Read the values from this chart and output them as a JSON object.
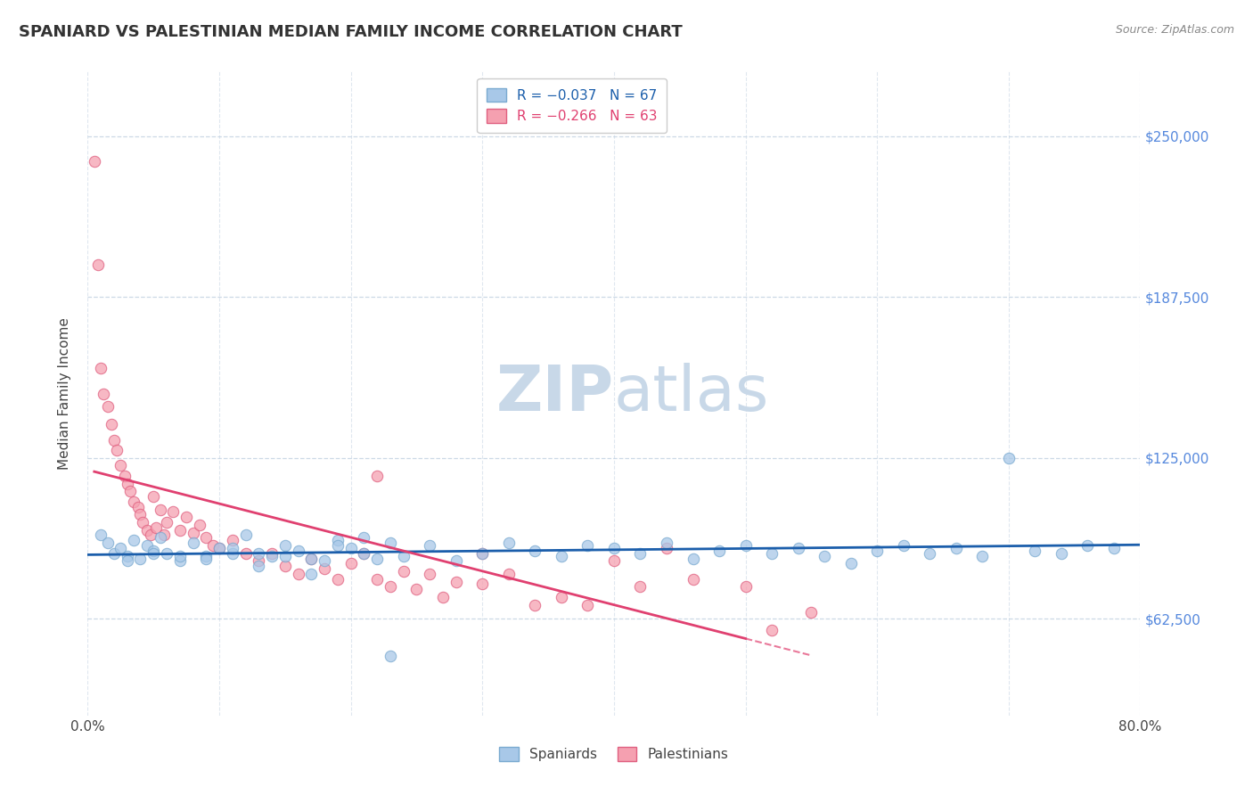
{
  "title": "SPANIARD VS PALESTINIAN MEDIAN FAMILY INCOME CORRELATION CHART",
  "source_text": "Source: ZipAtlas.com",
  "ylabel": "Median Family Income",
  "xlim": [
    0.0,
    80.0
  ],
  "ylim": [
    25000,
    275000
  ],
  "yticks": [
    62500,
    125000,
    187500,
    250000
  ],
  "ytick_labels": [
    "$62,500",
    "$125,000",
    "$187,500",
    "$250,000"
  ],
  "xticks": [
    0,
    10,
    20,
    30,
    40,
    50,
    60,
    70,
    80
  ],
  "xtick_labels": [
    "0.0%",
    "",
    "",
    "",
    "",
    "",
    "",
    "",
    "80.0%"
  ],
  "spaniard_color": "#A8C8E8",
  "spaniard_edge_color": "#7AAAD0",
  "palestinian_color": "#F5A0B0",
  "palestinian_edge_color": "#E06080",
  "spaniard_line_color": "#1B5EAB",
  "palestinian_line_color": "#E04070",
  "watermark_color": "#C8D8E8",
  "grid_color": "#C0D0E0",
  "spaniard_x": [
    1.0,
    1.5,
    2.0,
    2.5,
    3.0,
    3.5,
    4.0,
    4.5,
    5.0,
    5.5,
    6.0,
    7.0,
    8.0,
    9.0,
    10.0,
    11.0,
    12.0,
    13.0,
    14.0,
    15.0,
    16.0,
    17.0,
    18.0,
    19.0,
    20.0,
    21.0,
    22.0,
    23.0,
    24.0,
    26.0,
    28.0,
    30.0,
    32.0,
    34.0,
    36.0,
    38.0,
    40.0,
    42.0,
    44.0,
    46.0,
    48.0,
    50.0,
    52.0,
    54.0,
    56.0,
    58.0,
    60.0,
    62.0,
    64.0,
    66.0,
    68.0,
    70.0,
    72.0,
    74.0,
    76.0,
    78.0,
    3.0,
    5.0,
    7.0,
    9.0,
    11.0,
    13.0,
    15.0,
    17.0,
    19.0,
    21.0,
    23.0
  ],
  "spaniard_y": [
    95000,
    92000,
    88000,
    90000,
    87000,
    93000,
    86000,
    91000,
    89000,
    94000,
    88000,
    85000,
    92000,
    87000,
    90000,
    88000,
    95000,
    83000,
    87000,
    91000,
    89000,
    80000,
    85000,
    93000,
    90000,
    88000,
    86000,
    92000,
    87000,
    91000,
    85000,
    88000,
    92000,
    89000,
    87000,
    91000,
    90000,
    88000,
    92000,
    86000,
    89000,
    91000,
    88000,
    90000,
    87000,
    84000,
    89000,
    91000,
    88000,
    90000,
    87000,
    125000,
    89000,
    88000,
    91000,
    90000,
    85000,
    88000,
    87000,
    86000,
    90000,
    88000,
    87000,
    86000,
    91000,
    94000,
    48000
  ],
  "palestinian_x": [
    0.5,
    0.8,
    1.0,
    1.2,
    1.5,
    1.8,
    2.0,
    2.2,
    2.5,
    2.8,
    3.0,
    3.2,
    3.5,
    3.8,
    4.0,
    4.2,
    4.5,
    4.8,
    5.0,
    5.2,
    5.5,
    5.8,
    6.0,
    6.5,
    7.0,
    7.5,
    8.0,
    8.5,
    9.0,
    9.5,
    10.0,
    11.0,
    12.0,
    13.0,
    14.0,
    15.0,
    16.0,
    17.0,
    18.0,
    19.0,
    20.0,
    21.0,
    22.0,
    23.0,
    24.0,
    25.0,
    26.0,
    27.0,
    28.0,
    30.0,
    32.0,
    34.0,
    36.0,
    38.0,
    40.0,
    42.0,
    44.0,
    46.0,
    50.0,
    52.0,
    55.0,
    22.0,
    30.0
  ],
  "palestinian_y": [
    240000,
    200000,
    160000,
    150000,
    145000,
    138000,
    132000,
    128000,
    122000,
    118000,
    115000,
    112000,
    108000,
    106000,
    103000,
    100000,
    97000,
    95000,
    110000,
    98000,
    105000,
    95000,
    100000,
    104000,
    97000,
    102000,
    96000,
    99000,
    94000,
    91000,
    90000,
    93000,
    88000,
    85000,
    88000,
    83000,
    80000,
    86000,
    82000,
    78000,
    84000,
    88000,
    78000,
    75000,
    81000,
    74000,
    80000,
    71000,
    77000,
    76000,
    80000,
    68000,
    71000,
    68000,
    85000,
    75000,
    90000,
    78000,
    75000,
    58000,
    65000,
    118000,
    88000
  ]
}
